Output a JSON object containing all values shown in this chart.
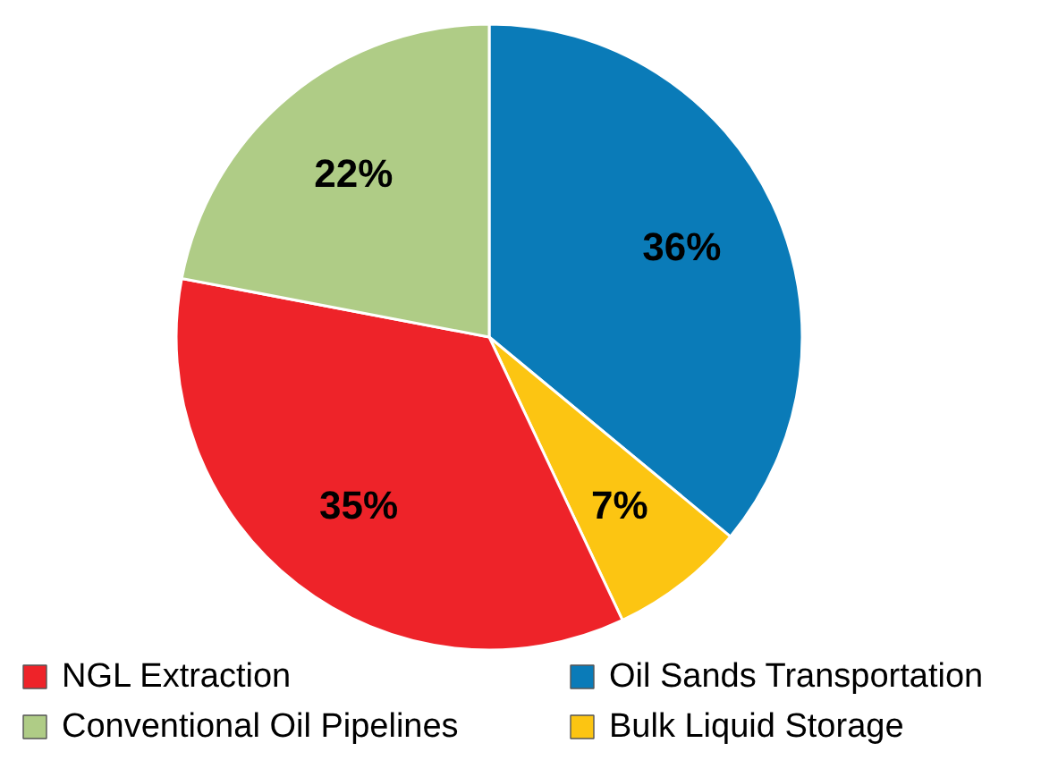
{
  "chart_data": {
    "type": "pie",
    "categories": [
      "Oil Sands Transportation",
      "Bulk Liquid Storage",
      "NGL Extraction",
      "Conventional Oil Pipelines"
    ],
    "values": [
      36,
      7,
      35,
      22
    ],
    "colors": [
      "#0a7bb8",
      "#fcc512",
      "#ee2329",
      "#afcc86"
    ],
    "value_labels": [
      "36%",
      "7%",
      "35%",
      "22%"
    ],
    "legend": "bottom"
  }
}
